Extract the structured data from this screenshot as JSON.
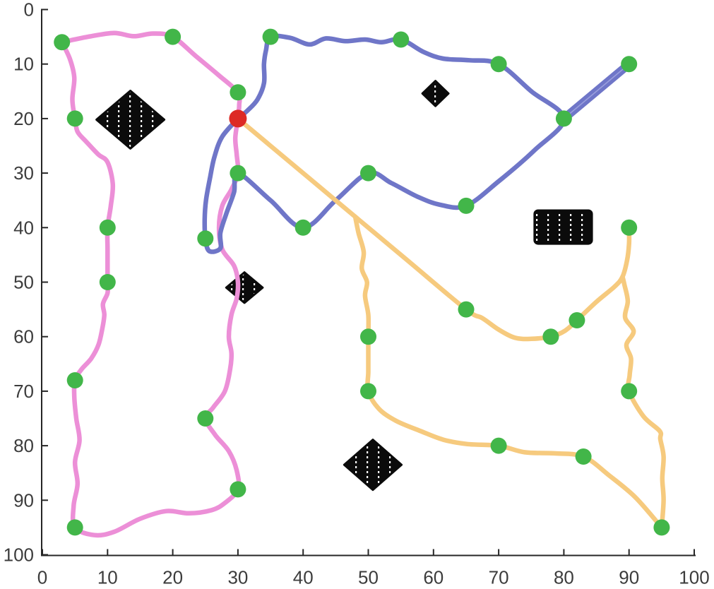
{
  "figure": {
    "background": "#ffffff",
    "description": "Multi-robot path planning result: three colored routes (violet, blue, orange) from a red start point through green waypoints around black obstacle regions"
  },
  "chart_data": {
    "type": "line",
    "title": "",
    "xlabel": "",
    "ylabel": "",
    "x_range": [
      0,
      100
    ],
    "y_range": [
      0,
      100
    ],
    "y_axis_inverted": true,
    "grid": false,
    "legend": false,
    "x_ticks": [
      "0",
      "10",
      "20",
      "30",
      "40",
      "50",
      "60",
      "70",
      "80",
      "90",
      "100"
    ],
    "y_ticks": [
      "0",
      "10",
      "20",
      "30",
      "40",
      "50",
      "60",
      "70",
      "80",
      "90",
      "100"
    ],
    "x_tick_values": [
      0,
      10,
      20,
      30,
      40,
      50,
      60,
      70,
      80,
      90,
      100
    ],
    "y_tick_values": [
      0,
      10,
      20,
      30,
      40,
      50,
      60,
      70,
      80,
      90,
      100
    ],
    "colors": {
      "violet_path": "#ec8fd7",
      "blue_path": "#6f76c8",
      "orange_path": "#f6ca7e",
      "waypoint_green": "#42b649",
      "start_red": "#dd2a25",
      "obstacle_black": "#0b0b0b",
      "axis": "#262626",
      "tick_label": "#3c3c3c"
    },
    "start_point": {
      "x": 30,
      "y": 20
    },
    "waypoints": [
      [
        3,
        6
      ],
      [
        20,
        5
      ],
      [
        30,
        15.2
      ],
      [
        35,
        5
      ],
      [
        55,
        5.5
      ],
      [
        70,
        10
      ],
      [
        90,
        10
      ],
      [
        80,
        20
      ],
      [
        5,
        20
      ],
      [
        30,
        30
      ],
      [
        50,
        30
      ],
      [
        40,
        40
      ],
      [
        65,
        36
      ],
      [
        25,
        42
      ],
      [
        10,
        40
      ],
      [
        10,
        50
      ],
      [
        65,
        55
      ],
      [
        82,
        57
      ],
      [
        78,
        60
      ],
      [
        50,
        60
      ],
      [
        90,
        40
      ],
      [
        5,
        68
      ],
      [
        50,
        70
      ],
      [
        90,
        70
      ],
      [
        25,
        75
      ],
      [
        70,
        80
      ],
      [
        83,
        82
      ],
      [
        30,
        88
      ],
      [
        5,
        95
      ],
      [
        95,
        95
      ]
    ],
    "obstacles": [
      {
        "shape": "diamond",
        "cx": 13.5,
        "cy": 20.2,
        "rx": 5.2,
        "ry": 5.3
      },
      {
        "shape": "diamond",
        "cx": 60.3,
        "cy": 15.4,
        "rx": 2.0,
        "ry": 2.3
      },
      {
        "shape": "diamond",
        "cx": 31.0,
        "cy": 51.0,
        "rx": 2.8,
        "ry": 2.8
      },
      {
        "shape": "rect",
        "cx": 79.9,
        "cy": 39.9,
        "rx": 4.4,
        "ry": 3.05
      },
      {
        "shape": "diamond",
        "cx": 50.7,
        "cy": 83.5,
        "rx": 4.4,
        "ry": 4.6
      }
    ],
    "paths": [
      {
        "name": "violet-route",
        "color_key": "violet_path",
        "width": 6.5,
        "points": [
          [
            3,
            6
          ],
          [
            7,
            5
          ],
          [
            11,
            4.3
          ],
          [
            14,
            4.9
          ],
          [
            17,
            4.4
          ],
          [
            20,
            5
          ],
          [
            23.5,
            8.5
          ],
          [
            27,
            12
          ],
          [
            30,
            15.2
          ],
          [
            30.2,
            17.5
          ],
          [
            30,
            20
          ],
          [
            29.6,
            23.5
          ],
          [
            29.8,
            26.5
          ],
          [
            30,
            30
          ],
          [
            29,
            33
          ],
          [
            27.6,
            36
          ],
          [
            27.1,
            40
          ],
          [
            27.6,
            44
          ],
          [
            29.4,
            47
          ],
          [
            30,
            50
          ],
          [
            29.8,
            53
          ],
          [
            29,
            56
          ],
          [
            28.6,
            60
          ],
          [
            29,
            63
          ],
          [
            28.8,
            66
          ],
          [
            28,
            70
          ],
          [
            26.2,
            73
          ],
          [
            25,
            75
          ],
          [
            26.5,
            78
          ],
          [
            28.6,
            81
          ],
          [
            29.8,
            84.5
          ],
          [
            30,
            88
          ],
          [
            28,
            90.5
          ],
          [
            26,
            91.8
          ],
          [
            22.5,
            92.4
          ],
          [
            19,
            92
          ],
          [
            15,
            93.4
          ],
          [
            11,
            95.8
          ],
          [
            8,
            96.4
          ],
          [
            5,
            95
          ],
          [
            4.8,
            91
          ],
          [
            5.4,
            87
          ],
          [
            5,
            83
          ],
          [
            5.7,
            79
          ],
          [
            5.2,
            75
          ],
          [
            4.9,
            71
          ],
          [
            5,
            68
          ],
          [
            6,
            66
          ],
          [
            7.5,
            64
          ],
          [
            8.6,
            61.5
          ],
          [
            9.2,
            58.5
          ],
          [
            9.5,
            56
          ],
          [
            9.3,
            54
          ],
          [
            10,
            52
          ],
          [
            10,
            50
          ],
          [
            10,
            47
          ],
          [
            10,
            44
          ],
          [
            10,
            40
          ],
          [
            10.5,
            36
          ],
          [
            10.8,
            32
          ],
          [
            10,
            28
          ],
          [
            8.6,
            26.6
          ],
          [
            6.7,
            24.2
          ],
          [
            5.4,
            22.4
          ],
          [
            5,
            20
          ],
          [
            4.6,
            16.5
          ],
          [
            4.9,
            12.5
          ],
          [
            4.2,
            9
          ],
          [
            3,
            6
          ]
        ]
      },
      {
        "name": "blue-route",
        "color_key": "blue_path",
        "width": 6.5,
        "points": [
          [
            30,
            20
          ],
          [
            31.5,
            18.5
          ],
          [
            33,
            16.5
          ],
          [
            34,
            13.5
          ],
          [
            34,
            10
          ],
          [
            34.3,
            7.5
          ],
          [
            35,
            5
          ],
          [
            38,
            5.2
          ],
          [
            41,
            6.4
          ],
          [
            43.5,
            5.3
          ],
          [
            46.5,
            5.8
          ],
          [
            49.5,
            5.5
          ],
          [
            52,
            6
          ],
          [
            55,
            5.5
          ],
          [
            58.5,
            7.8
          ],
          [
            61.5,
            9
          ],
          [
            65.5,
            9.3
          ],
          [
            70,
            10
          ],
          [
            75,
            15
          ],
          [
            80,
            20
          ],
          [
            75.5,
            25.8
          ],
          [
            70,
            31.5
          ],
          [
            65,
            36
          ],
          [
            61,
            35.8
          ],
          [
            57.5,
            34.3
          ],
          [
            53.5,
            31.8
          ],
          [
            50,
            30
          ],
          [
            45,
            35
          ],
          [
            40,
            40
          ],
          [
            35,
            35
          ],
          [
            30,
            30
          ],
          [
            29.4,
            33.5
          ],
          [
            28.2,
            37.5
          ],
          [
            27.3,
            41
          ],
          [
            27.3,
            43.8
          ],
          [
            25.6,
            44.3
          ],
          [
            25,
            42
          ],
          [
            24.9,
            38.5
          ],
          [
            25.1,
            35
          ],
          [
            25.7,
            31
          ],
          [
            26.4,
            27
          ],
          [
            27.6,
            23.3
          ],
          [
            30,
            20
          ]
        ]
      },
      {
        "name": "orange-route-diagonal",
        "color_key": "orange_path",
        "width": 6.5,
        "points": [
          [
            30,
            20
          ],
          [
            34,
            24
          ],
          [
            40,
            30
          ],
          [
            48,
            38
          ],
          [
            56,
            46
          ],
          [
            65,
            55
          ],
          [
            67.5,
            56.6
          ],
          [
            70,
            58.7
          ],
          [
            72.5,
            60.2
          ],
          [
            75,
            60.4
          ],
          [
            78,
            60
          ],
          [
            80.2,
            58.9
          ],
          [
            82,
            57
          ],
          [
            85,
            53.6
          ],
          [
            87.8,
            50.8
          ],
          [
            89,
            49
          ],
          [
            89.7,
            46
          ],
          [
            90,
            43
          ],
          [
            90,
            40
          ]
        ]
      },
      {
        "name": "orange-route-branch",
        "color_key": "orange_path",
        "width": 6.5,
        "points": [
          [
            48,
            38
          ],
          [
            48.5,
            41
          ],
          [
            49.3,
            44.5
          ],
          [
            49,
            47.5
          ],
          [
            49.8,
            50
          ],
          [
            49.5,
            52.5
          ],
          [
            50,
            56
          ],
          [
            50,
            60
          ],
          [
            50,
            63.5
          ],
          [
            50,
            66.5
          ],
          [
            50,
            70
          ],
          [
            51.6,
            73.2
          ],
          [
            54.2,
            75.4
          ],
          [
            58,
            77.3
          ],
          [
            61.5,
            78.9
          ],
          [
            65.2,
            79.7
          ],
          [
            70,
            80
          ],
          [
            74,
            81.2
          ],
          [
            78.5,
            81.4
          ],
          [
            83,
            82
          ],
          [
            87,
            85.5
          ],
          [
            91,
            89.5
          ],
          [
            95,
            95
          ]
        ]
      },
      {
        "name": "orange-route-right",
        "color_key": "orange_path",
        "width": 6.5,
        "points": [
          [
            89,
            49
          ],
          [
            89.3,
            50.5
          ],
          [
            89.8,
            53.5
          ],
          [
            89.4,
            56.5
          ],
          [
            90.7,
            59
          ],
          [
            89.6,
            61.5
          ],
          [
            90.3,
            64
          ],
          [
            90.1,
            67
          ],
          [
            90,
            70
          ],
          [
            92.2,
            74.6
          ],
          [
            94.7,
            77.3
          ],
          [
            94.8,
            78.8
          ],
          [
            95.3,
            82
          ],
          [
            95.1,
            86
          ],
          [
            95.3,
            90
          ],
          [
            95,
            95
          ]
        ]
      }
    ],
    "double_segment": {
      "name": "blue-route-thick-outback",
      "color_key": "blue_path",
      "width": 12,
      "points": [
        [
          80,
          20
        ],
        [
          90,
          10
        ]
      ]
    },
    "marker_radius_px": {
      "waypoint": 11.5,
      "start": 12.5
    }
  }
}
